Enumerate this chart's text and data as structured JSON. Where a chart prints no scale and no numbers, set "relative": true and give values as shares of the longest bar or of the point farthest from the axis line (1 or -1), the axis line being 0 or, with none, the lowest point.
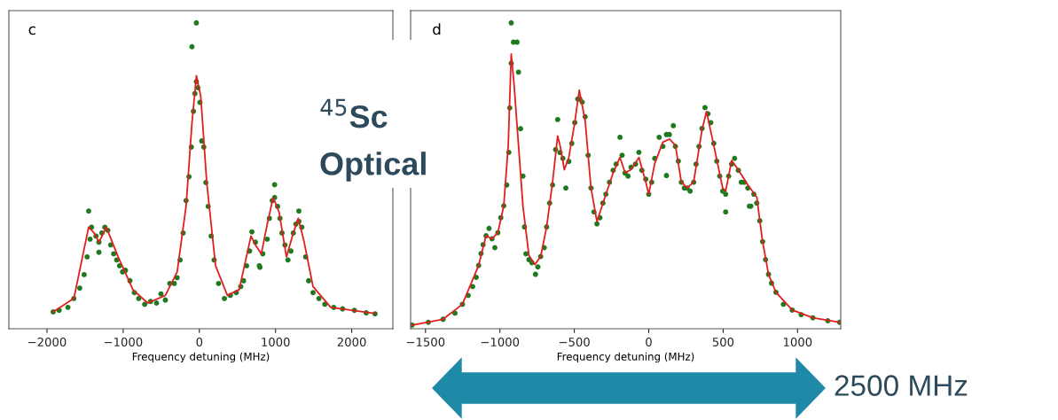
{
  "chart_data": [
    {
      "type": "scatter",
      "title": "c",
      "xlabel": "Frequency detuning (MHz)",
      "relative": true,
      "xlim": [
        -2500,
        2540
      ],
      "xticks": [
        {
          "value": -2000,
          "label": "−2000"
        },
        {
          "value": -1000,
          "label": "−1000"
        },
        0,
        1000,
        2000
      ],
      "series": [
        {
          "marker": "circle",
          "color": "#1f7a1f",
          "x": [
            -1919,
            -1841,
            -1725,
            -1647,
            -1570,
            -1512,
            -1473,
            -1434,
            -1415,
            -1357,
            -1318,
            -1279,
            -1240,
            -1202,
            -1163,
            -1124,
            -1085,
            -1047,
            -1008,
            -969,
            -911,
            -853,
            -795,
            -717,
            -640,
            -562,
            -504,
            -446,
            -388,
            -329,
            -291,
            -252,
            -213,
            -174,
            -136,
            -105,
            -78,
            -58,
            -39,
            -19,
            8,
            31,
            58,
            85,
            116,
            155,
            194,
            252,
            329,
            407,
            485,
            543,
            581,
            620,
            659,
            690,
            736,
            787,
            833,
            891,
            919,
            957,
            988,
            1027,
            1058,
            1085,
            1124,
            1163,
            1202,
            1233,
            1267,
            1306,
            1345,
            1395,
            1434,
            1492,
            1570,
            1647,
            1764,
            1880,
            2035,
            2190,
            2306,
            -97,
            -39,
            988,
            1306,
            -1453,
            -1318,
            795
          ],
          "values": [
            0.055,
            0.06,
            0.07,
            0.099,
            0.133,
            0.177,
            0.235,
            0.293,
            0.332,
            0.303,
            0.283,
            0.313,
            0.332,
            0.322,
            0.274,
            0.245,
            0.225,
            0.206,
            0.186,
            0.191,
            0.157,
            0.118,
            0.099,
            0.08,
            0.089,
            0.084,
            0.114,
            0.094,
            0.148,
            0.148,
            0.167,
            0.225,
            0.313,
            0.419,
            0.497,
            0.594,
            0.711,
            0.769,
            0.808,
            0.788,
            0.74,
            0.614,
            0.594,
            0.478,
            0.4,
            0.303,
            0.225,
            0.148,
            0.099,
            0.109,
            0.118,
            0.138,
            0.157,
            0.206,
            0.254,
            0.317,
            0.283,
            0.206,
            0.245,
            0.293,
            0.361,
            0.419,
            0.429,
            0.4,
            0.361,
            0.313,
            0.274,
            0.225,
            0.254,
            0.313,
            0.342,
            0.351,
            0.332,
            0.235,
            0.157,
            0.118,
            0.099,
            0.08,
            0.07,
            0.065,
            0.06,
            0.052,
            0.049,
            0.922,
            1.0,
            0.471,
            0.385,
            0.385,
            0.25,
            0.201
          ]
        },
        {
          "type": "line",
          "color": "#e02020",
          "x": [
            -1919,
            -1647,
            -1453,
            -1376,
            -1318,
            -1221,
            -1066,
            -872,
            -678,
            -446,
            -291,
            -174,
            -97,
            -39,
            19,
            97,
            213,
            368,
            523,
            678,
            736,
            814,
            891,
            969,
            1047,
            1143,
            1221,
            1298,
            1376,
            1492,
            1725,
            2306
          ],
          "values": [
            0.055,
            0.099,
            0.332,
            0.312,
            0.283,
            0.332,
            0.235,
            0.128,
            0.084,
            0.109,
            0.186,
            0.401,
            0.672,
            0.827,
            0.759,
            0.478,
            0.206,
            0.109,
            0.128,
            0.303,
            0.274,
            0.245,
            0.342,
            0.429,
            0.381,
            0.235,
            0.303,
            0.361,
            0.283,
            0.138,
            0.07,
            0.05
          ]
        }
      ]
    },
    {
      "type": "scatter",
      "title": "d",
      "xlabel": "Frequency detuning (MHz)",
      "relative": true,
      "xlim": [
        -1600,
        1290
      ],
      "xticks": [
        {
          "value": -1500,
          "label": "−1500"
        },
        {
          "value": -1000,
          "label": "−1000"
        },
        {
          "value": -500,
          "label": "−500"
        },
        0,
        500,
        1000
      ],
      "annotations": [
        "$^{45}$Sc",
        "Optical",
        "2500 MHz"
      ],
      "series": [
        {
          "marker": "circle",
          "color": "#1f7a1f",
          "x": [
            -1590,
            -1481,
            -1382,
            -1302,
            -1252,
            -1213,
            -1183,
            -1159,
            -1143,
            -1127,
            -1113,
            -1093,
            -1073,
            -1053,
            -1034,
            -1014,
            -994,
            -974,
            -954,
            -940,
            -934,
            -924,
            -909,
            -885,
            -875,
            -861,
            -845,
            -835,
            -825,
            -805,
            -785,
            -761,
            -745,
            -726,
            -702,
            -686,
            -666,
            -646,
            -626,
            -612,
            -596,
            -577,
            -557,
            -537,
            -517,
            -497,
            -477,
            -463,
            -447,
            -427,
            -407,
            -388,
            -368,
            -348,
            -328,
            -308,
            -288,
            -264,
            -239,
            -219,
            -193,
            -179,
            -159,
            -139,
            -119,
            -89,
            -66,
            -46,
            -20,
            0,
            20,
            40,
            70,
            95,
            119,
            139,
            165,
            179,
            199,
            219,
            239,
            258,
            278,
            302,
            318,
            338,
            358,
            378,
            398,
            417,
            437,
            457,
            477,
            497,
            517,
            537,
            557,
            577,
            602,
            622,
            642,
            666,
            686,
            706,
            726,
            746,
            765,
            785,
            805,
            825,
            855,
            905,
            964,
            1024,
            1103,
            1203,
            1282,
            -924,
            517,
            676,
            119
          ],
          "values": [
            0.012,
            0.021,
            0.031,
            0.051,
            0.08,
            0.109,
            0.138,
            0.168,
            0.207,
            0.246,
            0.275,
            0.304,
            0.328,
            0.294,
            0.265,
            0.314,
            0.363,
            0.402,
            0.47,
            0.577,
            0.722,
            0.868,
            0.937,
            0.937,
            0.839,
            0.654,
            0.499,
            0.333,
            0.245,
            0.226,
            0.216,
            0.178,
            0.202,
            0.236,
            0.265,
            0.333,
            0.411,
            0.47,
            0.586,
            0.684,
            0.576,
            0.557,
            0.46,
            0.547,
            0.606,
            0.674,
            0.751,
            0.751,
            0.741,
            0.693,
            0.567,
            0.46,
            0.382,
            0.343,
            0.363,
            0.411,
            0.44,
            0.479,
            0.518,
            0.538,
            0.626,
            0.567,
            0.509,
            0.499,
            0.528,
            0.538,
            0.577,
            0.518,
            0.489,
            0.44,
            0.479,
            0.557,
            0.626,
            0.596,
            0.635,
            0.635,
            0.664,
            0.596,
            0.548,
            0.479,
            0.46,
            0.46,
            0.45,
            0.479,
            0.538,
            0.596,
            0.655,
            0.723,
            0.703,
            0.674,
            0.606,
            0.548,
            0.499,
            0.45,
            0.44,
            0.499,
            0.538,
            0.557,
            0.518,
            0.479,
            0.479,
            0.46,
            0.401,
            0.44,
            0.411,
            0.353,
            0.285,
            0.226,
            0.178,
            0.149,
            0.119,
            0.08,
            0.061,
            0.046,
            0.036,
            0.026,
            0.021,
            1.0,
            0.382,
            0.401,
            0.501
          ]
        },
        {
          "type": "line",
          "color": "#e02020",
          "x": [
            -1590,
            -1382,
            -1252,
            -1143,
            -1093,
            -1053,
            -1014,
            -974,
            -944,
            -924,
            -905,
            -875,
            -845,
            -805,
            -765,
            -726,
            -686,
            -646,
            -612,
            -596,
            -567,
            -537,
            -497,
            -467,
            -427,
            -388,
            -348,
            -308,
            -239,
            -193,
            -159,
            -119,
            -66,
            -20,
            0,
            40,
            95,
            139,
            179,
            219,
            258,
            302,
            358,
            388,
            437,
            497,
            517,
            557,
            602,
            666,
            726,
            765,
            805,
            855,
            964,
            1103,
            1282
          ],
          "values": [
            0.012,
            0.031,
            0.08,
            0.207,
            0.304,
            0.294,
            0.314,
            0.402,
            0.6,
            0.898,
            0.8,
            0.6,
            0.4,
            0.24,
            0.21,
            0.236,
            0.333,
            0.48,
            0.63,
            0.6,
            0.52,
            0.56,
            0.674,
            0.78,
            0.68,
            0.46,
            0.35,
            0.41,
            0.51,
            0.56,
            0.51,
            0.52,
            0.56,
            0.48,
            0.44,
            0.54,
            0.61,
            0.62,
            0.6,
            0.48,
            0.46,
            0.48,
            0.65,
            0.71,
            0.6,
            0.46,
            0.45,
            0.55,
            0.52,
            0.47,
            0.43,
            0.285,
            0.178,
            0.119,
            0.061,
            0.036,
            0.021
          ]
        }
      ]
    }
  ]
}
